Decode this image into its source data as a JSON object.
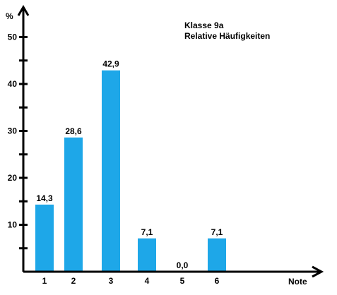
{
  "chart_data": {
    "type": "bar",
    "title": "Klasse 9a",
    "subtitle": "Relative Häufigkeiten",
    "xlabel": "Note",
    "ylabel": "%",
    "categories": [
      "1",
      "2",
      "3",
      "4",
      "5",
      "6"
    ],
    "values": [
      14.3,
      28.6,
      42.9,
      7.1,
      0.0,
      7.1
    ],
    "value_labels": [
      "14,3",
      "28,6",
      "42,9",
      "7,1",
      "0,0",
      "7,1"
    ],
    "ylim": [
      0,
      55
    ],
    "yticks": [
      10,
      20,
      30,
      40,
      50
    ],
    "yminor": [
      5,
      15,
      25,
      35,
      45
    ],
    "grid": false,
    "bar_color": "#1ea7e8"
  }
}
